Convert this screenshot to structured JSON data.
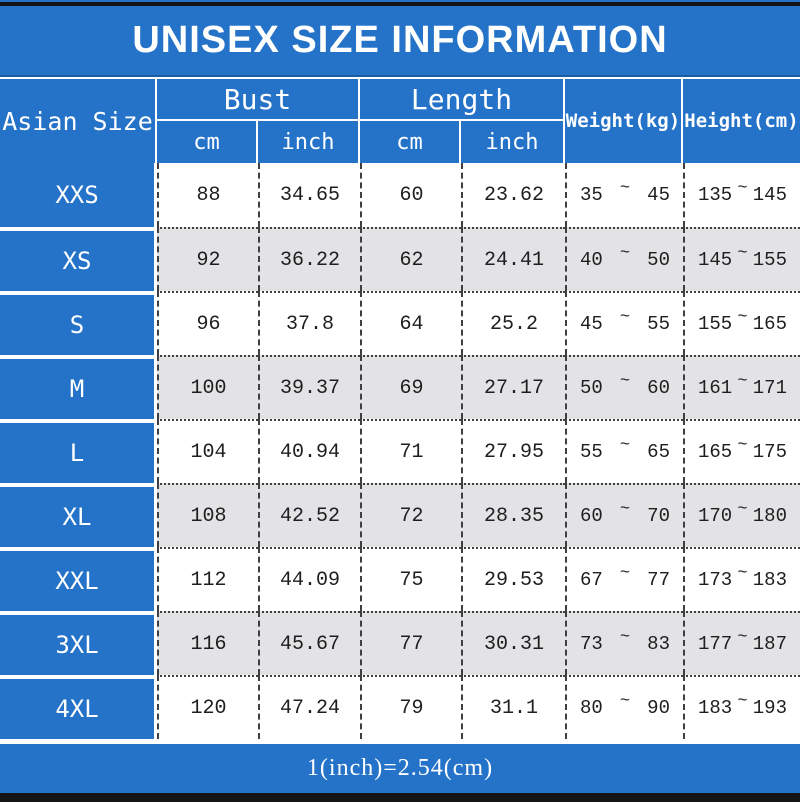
{
  "title": "UNISEX SIZE INFORMATION",
  "table": {
    "size_col_header": "Asian Size",
    "tilde": "~",
    "groups": [
      {
        "label": "Bust",
        "sub": [
          "cm",
          "inch"
        ]
      },
      {
        "label": "Length",
        "sub": [
          "cm",
          "inch"
        ]
      }
    ],
    "range_headers": [
      "Weight(kg)",
      "Height(cm)"
    ],
    "rows": [
      {
        "size": "XXS",
        "bust_cm": "88",
        "bust_inch": "34.65",
        "length_cm": "60",
        "length_inch": "23.62",
        "weight_min": "35",
        "weight_max": "45",
        "height_min": "135",
        "height_max": "145"
      },
      {
        "size": "XS",
        "bust_cm": "92",
        "bust_inch": "36.22",
        "length_cm": "62",
        "length_inch": "24.41",
        "weight_min": "40",
        "weight_max": "50",
        "height_min": "145",
        "height_max": "155"
      },
      {
        "size": "S",
        "bust_cm": "96",
        "bust_inch": "37.8",
        "length_cm": "64",
        "length_inch": "25.2",
        "weight_min": "45",
        "weight_max": "55",
        "height_min": "155",
        "height_max": "165"
      },
      {
        "size": "M",
        "bust_cm": "100",
        "bust_inch": "39.37",
        "length_cm": "69",
        "length_inch": "27.17",
        "weight_min": "50",
        "weight_max": "60",
        "height_min": "161",
        "height_max": "171"
      },
      {
        "size": "L",
        "bust_cm": "104",
        "bust_inch": "40.94",
        "length_cm": "71",
        "length_inch": "27.95",
        "weight_min": "55",
        "weight_max": "65",
        "height_min": "165",
        "height_max": "175"
      },
      {
        "size": "XL",
        "bust_cm": "108",
        "bust_inch": "42.52",
        "length_cm": "72",
        "length_inch": "28.35",
        "weight_min": "60",
        "weight_max": "70",
        "height_min": "170",
        "height_max": "180"
      },
      {
        "size": "XXL",
        "bust_cm": "112",
        "bust_inch": "44.09",
        "length_cm": "75",
        "length_inch": "29.53",
        "weight_min": "67",
        "weight_max": "77",
        "height_min": "173",
        "height_max": "183"
      },
      {
        "size": "3XL",
        "bust_cm": "116",
        "bust_inch": "45.67",
        "length_cm": "77",
        "length_inch": "30.31",
        "weight_min": "73",
        "weight_max": "83",
        "height_min": "177",
        "height_max": "187"
      },
      {
        "size": "4XL",
        "bust_cm": "120",
        "bust_inch": "47.24",
        "length_cm": "79",
        "length_inch": "31.1",
        "weight_min": "80",
        "weight_max": "90",
        "height_min": "183",
        "height_max": "193"
      }
    ]
  },
  "footer": {
    "note": "1(inch)=2.54(cm)"
  },
  "colors": {
    "blue": "#2473c8",
    "stripe": "#e3e3e6",
    "line": "#3f3f3f",
    "bar": "#141414",
    "text": "#1e1e1e",
    "white": "#ffffff"
  },
  "chart_data": {
    "type": "table",
    "title": "UNISEX SIZE INFORMATION",
    "columns": [
      "Asian Size",
      "Bust cm",
      "Bust inch",
      "Length cm",
      "Length inch",
      "Weight(kg)",
      "Height(cm)"
    ],
    "rows": [
      [
        "XXS",
        88,
        34.65,
        60,
        23.62,
        "35~45",
        "135~145"
      ],
      [
        "XS",
        92,
        36.22,
        62,
        24.41,
        "40~50",
        "145~155"
      ],
      [
        "S",
        96,
        37.8,
        64,
        25.2,
        "45~55",
        "155~165"
      ],
      [
        "M",
        100,
        39.37,
        69,
        27.17,
        "50~60",
        "161~171"
      ],
      [
        "L",
        104,
        40.94,
        71,
        27.95,
        "55~65",
        "165~175"
      ],
      [
        "XL",
        108,
        42.52,
        72,
        28.35,
        "60~70",
        "170~180"
      ],
      [
        "XXL",
        112,
        44.09,
        75,
        29.53,
        "67~77",
        "173~183"
      ],
      [
        "3XL",
        116,
        45.67,
        77,
        30.31,
        "73~83",
        "177~187"
      ],
      [
        "4XL",
        120,
        47.24,
        79,
        31.1,
        "80~90",
        "183~193"
      ]
    ],
    "note": "1(inch)=2.54(cm)"
  }
}
